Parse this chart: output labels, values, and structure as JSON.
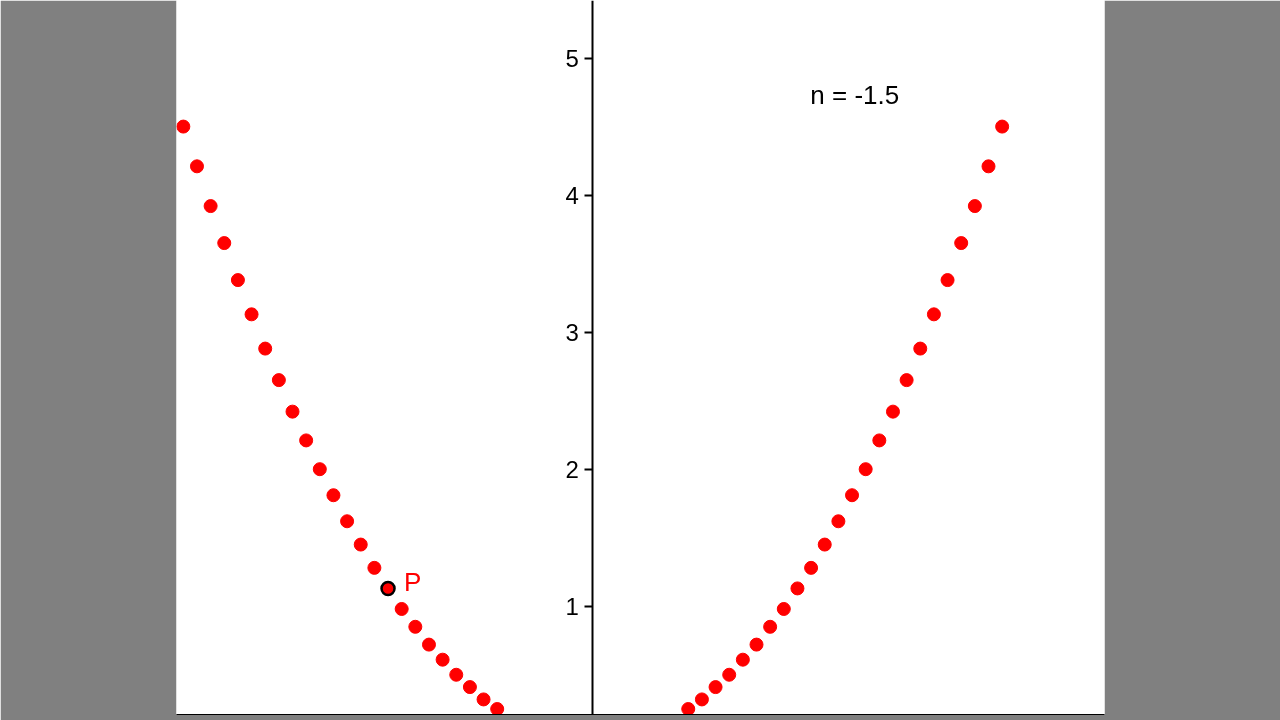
{
  "chart_data": {
    "type": "scatter",
    "categories": [
      null,
      null,
      null,
      null,
      null,
      null,
      null,
      null,
      null,
      null,
      null,
      null,
      null,
      null,
      null,
      null,
      null,
      null,
      null,
      null,
      null,
      null,
      null,
      null,
      null,
      null,
      null,
      null,
      null,
      null,
      null,
      null,
      null,
      null,
      null,
      null,
      null,
      null,
      null,
      null,
      null,
      null,
      null,
      null,
      null,
      null,
      null,
      null,
      null,
      null,
      null,
      null,
      null,
      null,
      null,
      null,
      null,
      null,
      null,
      null,
      null,
      null,
      null,
      null,
      null,
      null,
      null,
      null
    ],
    "series": [
      {
        "color": "#ff0000",
        "values": [
          4.5,
          4.21,
          3.92,
          3.65,
          3.38,
          3.13,
          2.88,
          2.65,
          2.42,
          2.21,
          2.0,
          1.81,
          1.62,
          1.45,
          1.28,
          null,
          0.98,
          0.85,
          0.72,
          0.61,
          0.5,
          0.41,
          0.32,
          0.25,
          null,
          null,
          null,
          null,
          null,
          null,
          null,
          null,
          null,
          null,
          null,
          null,
          null,
          0.25,
          0.32,
          0.41,
          0.5,
          0.61,
          0.72,
          0.85,
          0.98,
          1.13,
          1.28,
          1.45,
          1.62,
          1.81,
          2.0,
          2.21,
          2.42,
          2.65,
          2.88,
          3.13,
          3.38,
          3.65,
          3.92,
          4.21,
          4.5,
          null,
          null,
          null,
          null,
          null,
          null,
          null
        ]
      },
      {
        "name": "P",
        "color": "#ff0000",
        "values": [
          null,
          null,
          null,
          null,
          null,
          null,
          null,
          null,
          null,
          null,
          null,
          null,
          null,
          null,
          null,
          1.13,
          null,
          null,
          null,
          null,
          null,
          null,
          null,
          null,
          null,
          null,
          null,
          null,
          null,
          null,
          null,
          null,
          null,
          null,
          null,
          null,
          null,
          null,
          null,
          null,
          null,
          null,
          null,
          null,
          null,
          null,
          null,
          null,
          null,
          null,
          null,
          null,
          null,
          null,
          null,
          null,
          null,
          null,
          null,
          null,
          null,
          null,
          null,
          null,
          null,
          null,
          null,
          null
        ]
      }
    ],
    "ylim": [
      0.21,
      5.42
    ],
    "yticks": [
      1,
      2,
      3,
      4,
      5
    ],
    "tick_labels": "y",
    "grid": false,
    "legend": false,
    "marker": "circle",
    "annotations": [
      "n = -1.5"
    ]
  }
}
